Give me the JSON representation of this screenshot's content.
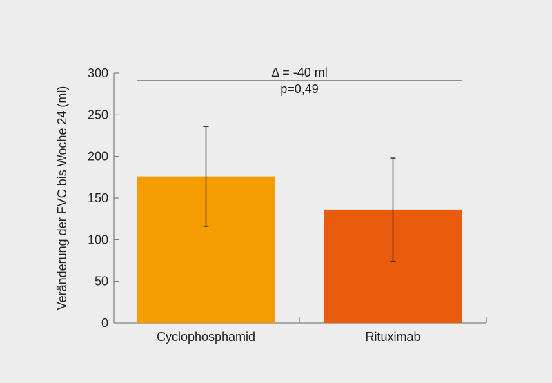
{
  "chart_data": {
    "type": "bar",
    "categories": [
      "Cyclophosphamid",
      "Rituximab"
    ],
    "values": [
      176,
      136
    ],
    "error_bars": [
      [
        116,
        236
      ],
      [
        74,
        198
      ]
    ],
    "colors": [
      "#f59d00",
      "#e95b0d"
    ],
    "ylabel": "Veränderung der FVC bis Woche 24 (ml)",
    "xlabel": "",
    "ylim": [
      0,
      300
    ],
    "yticks": [
      0,
      50,
      100,
      150,
      200,
      250,
      300
    ],
    "grid": false,
    "annotation": {
      "delta": "Δ = -40 ml",
      "p_value": "p=0,49"
    }
  }
}
